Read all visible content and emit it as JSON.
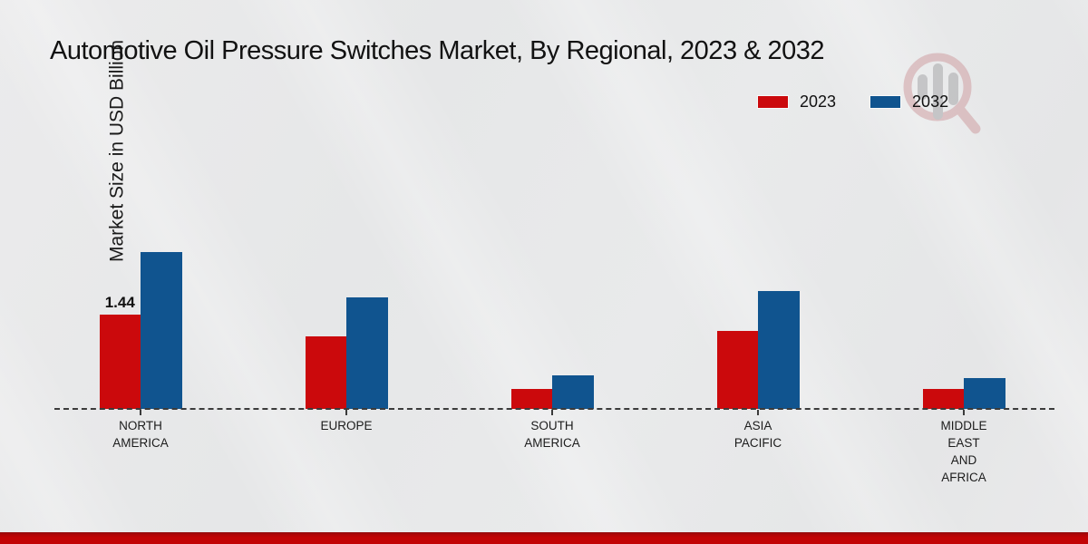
{
  "header": {
    "title": "Automotive Oil Pressure Switches Market, By Regional, 2023 & 2032"
  },
  "y_axis": {
    "label": "Market Size in USD Billion"
  },
  "chart_data": {
    "type": "bar",
    "title": "Automotive Oil Pressure Switches Market, By Regional, 2023 & 2032",
    "xlabel": "",
    "ylabel": "Market Size in USD Billion",
    "categories": [
      "NORTH AMERICA",
      "EUROPE",
      "SOUTH AMERICA",
      "ASIA PACIFIC",
      "MIDDLE EAST AND AFRICA"
    ],
    "series": [
      {
        "name": "2023",
        "color": "#cb090c",
        "values": [
          1.44,
          1.11,
          0.3,
          1.19,
          0.31
        ]
      },
      {
        "name": "2032",
        "color": "#10548f",
        "values": [
          2.38,
          1.7,
          0.51,
          1.79,
          0.47
        ]
      }
    ],
    "data_labels": [
      {
        "series": "2023",
        "category": "NORTH AMERICA",
        "text": "1.44"
      }
    ],
    "ylim": [
      0,
      2.6
    ],
    "grid": false,
    "legend_position": "top-right",
    "baseline_style": "dashed",
    "value_unit": "USD Billion"
  },
  "watermark": {
    "name": "market-research-magnifier-logo"
  },
  "footer": {
    "band_color": "#c20405"
  }
}
